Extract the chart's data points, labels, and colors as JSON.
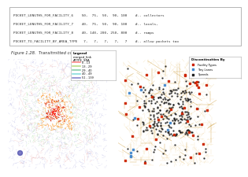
{
  "table_lines": [
    "POCKET_LENGTHS_FOR_FACILITY_6    50,  75,  50,  90, 100    #-- collectors",
    "POCKET_LENGTHS_FOR_FACILITY_7    40,  75,  50,  90, 100    #-- locals,",
    "POCKET_LENGTHS_FOR_FACILITY_8    40, 140, 200, 250, 800    #-- ramps",
    "POCKET_TO_FACILITY_BY_AREA_TYPE   7,   7,   7,   7,   7    #-- allow pockets too"
  ],
  "figure_caption": "Figure 1.28.  Transitmitted controls, by area type.",
  "left_legend_items": [
    {
      "label": "0 - 13",
      "color": "#ff8888"
    },
    {
      "label": "13 - 29",
      "color": "#bbdd88"
    },
    {
      "label": "29 - 40",
      "color": "#88ccaa"
    },
    {
      "label": "40 - 49",
      "color": "#88dddd"
    },
    {
      "label": "51 - 139",
      "color": "#8888cc"
    }
  ],
  "right_legend_title": "Discontinuities By",
  "right_legend_items": [
    {
      "label": "Facility Types",
      "color": "#cc2200"
    },
    {
      "label": "Tiny Lanes",
      "color": "#4488cc"
    },
    {
      "label": "Speeds",
      "color": "#222222"
    }
  ]
}
